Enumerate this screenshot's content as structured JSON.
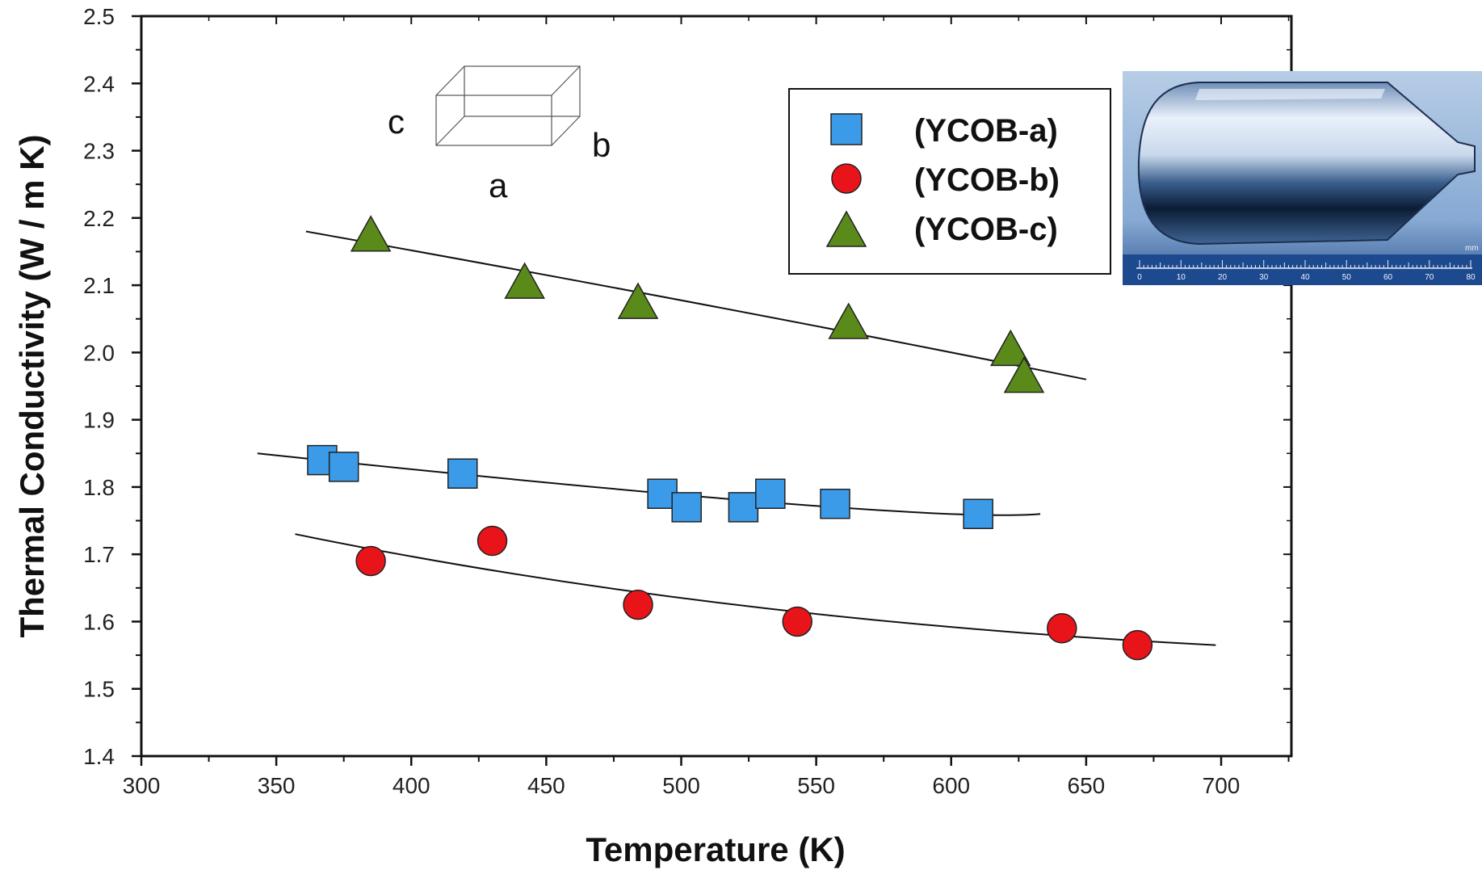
{
  "chart_data": {
    "type": "scatter",
    "xlabel": "Temperature (K)",
    "ylabel": "Thermal Conductivity (W / m K)",
    "xlim": [
      300,
      725
    ],
    "ylim": [
      1.4,
      2.5
    ],
    "xticks": [
      "300",
      "350",
      "400",
      "450",
      "500",
      "550",
      "600",
      "650",
      "700"
    ],
    "yticks": [
      "1.4",
      "1.5",
      "1.6",
      "1.7",
      "1.8",
      "1.9",
      "2.0",
      "2.1",
      "2.2",
      "2.3",
      "2.4",
      "2.5"
    ],
    "grid": false,
    "legend_position": "top-right",
    "series": [
      {
        "name": "(YCOB-a)",
        "marker": "square",
        "color": "#3b9be8",
        "points": [
          [
            367,
            1.84
          ],
          [
            375,
            1.83
          ],
          [
            419,
            1.82
          ],
          [
            493,
            1.79
          ],
          [
            502,
            1.77
          ],
          [
            523,
            1.77
          ],
          [
            533,
            1.79
          ],
          [
            557,
            1.775
          ],
          [
            610,
            1.76
          ]
        ],
        "fit": [
          [
            343,
            1.85
          ],
          [
            633,
            1.76
          ]
        ],
        "fit_mid": [
          540,
          1.775
        ]
      },
      {
        "name": "(YCOB-b)",
        "marker": "circle",
        "color": "#e8141a",
        "points": [
          [
            385,
            1.69
          ],
          [
            430,
            1.72
          ],
          [
            484,
            1.625
          ],
          [
            543,
            1.6
          ],
          [
            641,
            1.59
          ],
          [
            669,
            1.565
          ]
        ],
        "fit": [
          [
            357,
            1.73
          ],
          [
            698,
            1.565
          ]
        ],
        "fit_mid": [
          520,
          1.625
        ]
      },
      {
        "name": "(YCOB-c)",
        "marker": "triangle",
        "color": "#5a8a1a",
        "points": [
          [
            385,
            2.17
          ],
          [
            442,
            2.1
          ],
          [
            484,
            2.07
          ],
          [
            562,
            2.04
          ],
          [
            622,
            2.0
          ],
          [
            627,
            1.96
          ]
        ],
        "fit": [
          [
            361,
            2.18
          ],
          [
            650,
            1.96
          ]
        ],
        "fit_mid": [
          510,
          2.07
        ]
      }
    ],
    "inset_labels": {
      "a": "a",
      "b": "b",
      "c": "c"
    },
    "photo_scale": {
      "unit": "mm",
      "labels": [
        "0",
        "10",
        "20",
        "30",
        "40",
        "50",
        "60",
        "70",
        "80"
      ]
    }
  }
}
